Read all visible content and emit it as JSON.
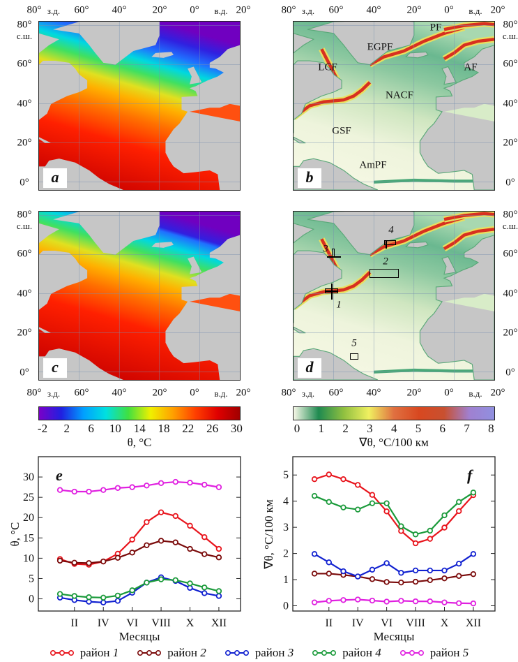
{
  "maps": {
    "lon_labels": [
      "80°",
      "60°",
      "40°",
      "20°",
      "0°",
      "20°"
    ],
    "west_label": "з.д.",
    "east_label": "в.д.",
    "lat_labels": [
      "80°",
      "60°",
      "40°",
      "20°",
      "0°"
    ],
    "north_label": "с.ш.",
    "panels": [
      {
        "label": "a",
        "field": "temperature"
      },
      {
        "label": "b",
        "field": "gradient"
      },
      {
        "label": "c",
        "field": "temperature"
      },
      {
        "label": "d",
        "field": "gradient"
      }
    ],
    "fronts": [
      "LCF",
      "EGPF",
      "PF",
      "AF",
      "NACF",
      "GSF",
      "AmPF"
    ],
    "regions": [
      "1",
      "2",
      "3",
      "4",
      "5"
    ]
  },
  "colorbars": {
    "temperature": {
      "ticks": [
        "-2",
        "2",
        "6",
        "10",
        "14",
        "18",
        "22",
        "26",
        "30"
      ],
      "label": "θ, °C",
      "colors": [
        "#7a00c8",
        "#2020e0",
        "#00a0ff",
        "#00e0e0",
        "#40e040",
        "#f0f000",
        "#ffa000",
        "#ff4000",
        "#e00000",
        "#a00000"
      ]
    },
    "gradient": {
      "ticks": [
        "0",
        "1",
        "2",
        "3",
        "4",
        "5",
        "6",
        "7",
        "8"
      ],
      "label": "∇θ, °C/100 км",
      "colors": [
        "#f8f8e8",
        "#1e8a50",
        "#90c040",
        "#f0f060",
        "#e07040",
        "#d84820",
        "#c85030",
        "#a080d0",
        "#9090e0"
      ]
    }
  },
  "chart_data": [
    {
      "type": "line",
      "panel_label": "e",
      "xlabel": "Месяцы",
      "ylabel": "θ, °C",
      "x": [
        1,
        2,
        3,
        4,
        5,
        6,
        7,
        8,
        9,
        10,
        11,
        12
      ],
      "xticks": [
        {
          "x": 2,
          "label": "II"
        },
        {
          "x": 4,
          "label": "IV"
        },
        {
          "x": 6,
          "label": "VI"
        },
        {
          "x": 8,
          "label": "VIII"
        },
        {
          "x": 10,
          "label": "X"
        },
        {
          "x": 12,
          "label": "XII"
        }
      ],
      "xlim": [
        -0.5,
        13.5
      ],
      "ylim": [
        -3,
        35
      ],
      "yticks": [
        0,
        5,
        10,
        15,
        20,
        25,
        30
      ],
      "grid": false,
      "series": [
        {
          "name": "район 1",
          "color": "#e8141c",
          "values": [
            9.8,
            8.6,
            8.4,
            9.2,
            11.1,
            14.6,
            18.9,
            21.3,
            20.4,
            18.0,
            15.2,
            12.3
          ]
        },
        {
          "name": "район 2",
          "color": "#7a0a0a",
          "values": [
            9.4,
            8.9,
            8.8,
            9.2,
            10.1,
            11.4,
            13.2,
            14.3,
            13.9,
            12.3,
            11.0,
            10.2
          ]
        },
        {
          "name": "район 3",
          "color": "#1020d0",
          "values": [
            0.3,
            -0.3,
            -0.7,
            -0.9,
            -0.5,
            1.5,
            4.0,
            5.3,
            4.4,
            2.7,
            1.4,
            0.7
          ]
        },
        {
          "name": "район 4",
          "color": "#1a9a3a",
          "values": [
            1.2,
            0.7,
            0.4,
            0.3,
            0.8,
            2.1,
            4.0,
            4.8,
            4.6,
            3.8,
            2.8,
            1.9
          ]
        },
        {
          "name": "район 5",
          "color": "#e020e0",
          "values": [
            26.8,
            26.4,
            26.4,
            26.8,
            27.3,
            27.5,
            27.9,
            28.5,
            28.8,
            28.6,
            28.1,
            27.5
          ]
        }
      ]
    },
    {
      "type": "line",
      "panel_label": "f",
      "xlabel": "Месяцы",
      "ylabel": "∇θ,  °C/100 км",
      "x": [
        1,
        2,
        3,
        4,
        5,
        6,
        7,
        8,
        9,
        10,
        11,
        12
      ],
      "xticks": [
        {
          "x": 2,
          "label": "II"
        },
        {
          "x": 4,
          "label": "IV"
        },
        {
          "x": 6,
          "label": "VI"
        },
        {
          "x": 8,
          "label": "VIII"
        },
        {
          "x": 10,
          "label": "X"
        },
        {
          "x": 12,
          "label": "XII"
        }
      ],
      "xlim": [
        -0.5,
        13.5
      ],
      "ylim": [
        -0.2,
        5.7
      ],
      "yticks": [
        0,
        1,
        2,
        3,
        4,
        5
      ],
      "grid": false,
      "series": [
        {
          "name": "район 1",
          "color": "#e8141c",
          "values": [
            4.84,
            5.02,
            4.84,
            4.62,
            4.24,
            3.61,
            2.86,
            2.39,
            2.56,
            2.99,
            3.62,
            4.23
          ]
        },
        {
          "name": "район 2",
          "color": "#7a0a0a",
          "values": [
            1.23,
            1.23,
            1.18,
            1.12,
            1.02,
            0.91,
            0.89,
            0.92,
            0.98,
            1.05,
            1.14,
            1.21
          ]
        },
        {
          "name": "район 3",
          "color": "#1020d0",
          "values": [
            1.98,
            1.66,
            1.32,
            1.12,
            1.38,
            1.63,
            1.26,
            1.35,
            1.35,
            1.35,
            1.61,
            1.98
          ]
        },
        {
          "name": "район 4",
          "color": "#1a9a3a",
          "values": [
            4.2,
            3.97,
            3.76,
            3.68,
            3.92,
            3.92,
            3.04,
            2.73,
            2.87,
            3.46,
            3.97,
            4.33
          ]
        },
        {
          "name": "район 5",
          "color": "#e020e0",
          "values": [
            0.13,
            0.19,
            0.22,
            0.24,
            0.2,
            0.16,
            0.19,
            0.17,
            0.17,
            0.13,
            0.1,
            0.09
          ]
        }
      ]
    }
  ]
}
